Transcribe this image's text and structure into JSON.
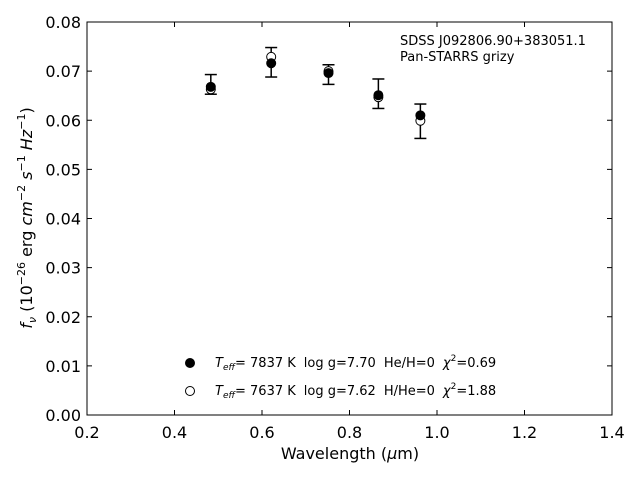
{
  "chart_data": {
    "type": "scatter",
    "xlabel_prefix": "Wavelength (",
    "xlabel_sym": "μ",
    "xlabel_suffix": "m)",
    "ylabel": {
      "f": "f",
      "nu": "ν",
      "open": " (10",
      "exp1": "−26",
      "erg": " erg ",
      "cm": "cm",
      "exp2": "−2",
      "s": " s",
      "exp3": "−1",
      "Hz": " Hz",
      "exp4": "−1",
      "close": ")"
    },
    "xlim": [
      0.2,
      1.4
    ],
    "ylim": [
      0.0,
      0.08
    ],
    "xticks": [
      "0.2",
      "0.4",
      "0.6",
      "0.8",
      "1.0",
      "1.2",
      "1.4"
    ],
    "yticks": [
      "0.00",
      "0.01",
      "0.02",
      "0.03",
      "0.04",
      "0.05",
      "0.06",
      "0.07",
      "0.08"
    ],
    "annotation_lines": [
      "SDSS J092806.90+383051.1",
      "Pan-STARRS grizy"
    ],
    "observed": {
      "x": [
        0.483,
        0.621,
        0.752,
        0.866,
        0.962
      ],
      "y": [
        0.0673,
        0.0718,
        0.0693,
        0.0654,
        0.0598
      ],
      "yerr": [
        0.002,
        0.003,
        0.002,
        0.003,
        0.0035
      ]
    },
    "series": [
      {
        "marker": "filled",
        "x": [
          0.483,
          0.621,
          0.752,
          0.866,
          0.962
        ],
        "y": [
          0.0668,
          0.0716,
          0.0696,
          0.0651,
          0.061
        ],
        "legend": {
          "T": "T",
          "sub": "eff",
          "temp": "=  7837 K",
          "logg": "log g=7.70",
          "comp": "He/H=0",
          "chi": "χ",
          "chi_exp": "2",
          "chi_val": "=0.69"
        }
      },
      {
        "marker": "open",
        "x": [
          0.483,
          0.621,
          0.752,
          0.866,
          0.962
        ],
        "y": [
          0.0663,
          0.0729,
          0.07,
          0.0647,
          0.0599
        ],
        "legend": {
          "T": "T",
          "sub": "eff",
          "temp": "=  7637 K",
          "logg": "log g=7.62",
          "comp": "H/He=0",
          "chi": "χ",
          "chi_exp": "2",
          "chi_val": "=1.88"
        }
      }
    ],
    "legend_location": "bottom-center",
    "grid": false
  }
}
